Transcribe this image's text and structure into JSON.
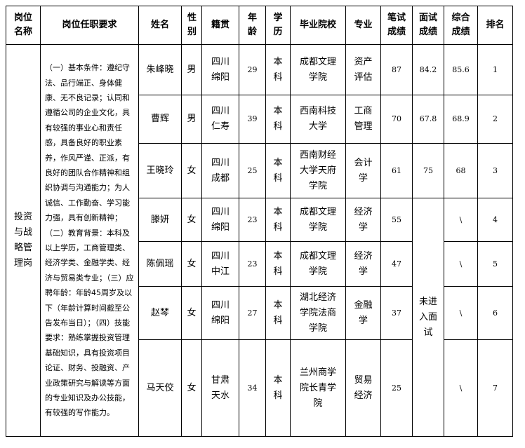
{
  "headers": [
    "岗位名称",
    "岗位任职要求",
    "姓名",
    "性别",
    "籍贯",
    "年龄",
    "学历",
    "毕业院校",
    "专业",
    "笔试成绩",
    "面试成绩",
    "综合成绩",
    "排名"
  ],
  "position": "投资与战略管理岗",
  "requirements": "（一）基本条件：遵纪守法、品行端正、身体健康、无不良记录；认同和遵循公司的企业文化，具有较强的事业心和责任感，具备良好的职业素养，作风严谨、正派，有良好的团队合作精神和组织协调与沟通能力；为人诚信、工作勤奋、学习能力强，具有创新精神；（二）教育背景：本科及以上学历，工商管理类、经济学类、金融学类、经济与贸易类专业；（三）应聘年龄：年龄45周岁及以下（年龄计算时间截至公告发布当日）；（四）技能要求：熟练掌握投资管理基础知识，具有投资项目论证、财务、投融资、产业政策研究与解读等方面的专业知识及办公技能，有较强的写作能力。",
  "not_interviewed": "未进入面试",
  "rows": [
    {
      "name": "朱峰晓",
      "gender": "男",
      "origin": "四川绵阳",
      "age": "29",
      "edu": "本科",
      "school": "成都文理学院",
      "major": "资产评估",
      "written": "87",
      "interview": "84.2",
      "total": "85.6",
      "rank": "1"
    },
    {
      "name": "曹辉",
      "gender": "男",
      "origin": "四川仁寿",
      "age": "39",
      "edu": "本科",
      "school": "西南科技大学",
      "major": "工商管理",
      "written": "70",
      "interview": "67.8",
      "total": "68.9",
      "rank": "2"
    },
    {
      "name": "王晓玲",
      "gender": "女",
      "origin": "四川成都",
      "age": "25",
      "edu": "本科",
      "school": "西南财经大学天府学院",
      "major": "会计学",
      "written": "61",
      "interview": "75",
      "total": "68",
      "rank": "3"
    },
    {
      "name": "滕妍",
      "gender": "女",
      "origin": "四川绵阳",
      "age": "23",
      "edu": "本科",
      "school": "成都文理学院",
      "major": "经济学",
      "written": "55",
      "total": "\\",
      "rank": "4"
    },
    {
      "name": "陈佩瑶",
      "gender": "女",
      "origin": "四川中江",
      "age": "23",
      "edu": "本科",
      "school": "成都文理学院",
      "major": "经济学",
      "written": "47",
      "total": "\\",
      "rank": "5"
    },
    {
      "name": "赵琴",
      "gender": "女",
      "origin": "四川绵阳",
      "age": "27",
      "edu": "本科",
      "school": "湖北经济学院法商学院",
      "major": "金融学",
      "written": "37",
      "total": "\\",
      "rank": "6"
    },
    {
      "name": "马天佼",
      "gender": "女",
      "origin": "甘肃天水",
      "age": "34",
      "edu": "本科",
      "school": "兰州商学院长青学院",
      "major": "贸易经济",
      "written": "25",
      "total": "\\",
      "rank": "7"
    }
  ]
}
